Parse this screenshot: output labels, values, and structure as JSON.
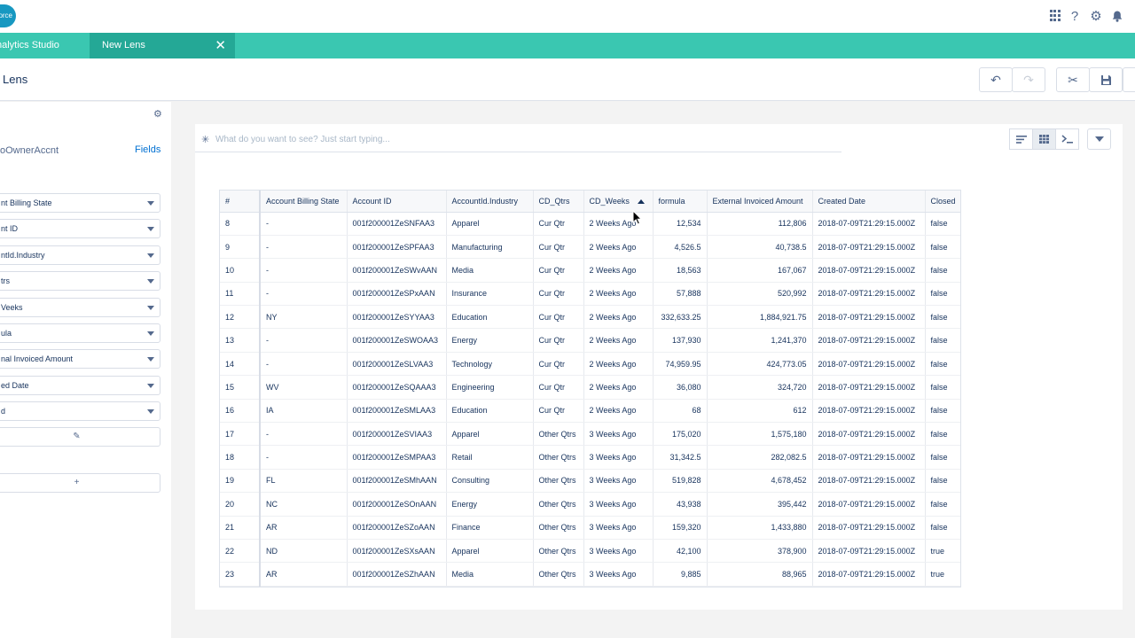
{
  "app": {
    "logo_text": "orce",
    "app_tab": "nalytics Studio",
    "active_tab": "New Lens",
    "close_glyph": "✕",
    "page_title": "Lens"
  },
  "icons": [
    "apps-grid-icon",
    "help-icon",
    "gear-icon",
    "bell-icon",
    "undo-icon",
    "redo-icon",
    "cut-icon",
    "save-icon"
  ],
  "sidebar": {
    "dataset": "oOwnerAccnt",
    "fields_link": "Fields",
    "fields": [
      "nt Billing State",
      "nt ID",
      "ntId.Industry",
      "trs",
      "Veeks",
      "ula",
      "nal Invoiced Amount",
      "ed Date",
      "d"
    ],
    "edit_glyph": "✎",
    "add_glyph": "+"
  },
  "search": {
    "placeholder": "What do you want to see? Just start typing..."
  },
  "table": {
    "columns": [
      "#",
      "Account Billing State",
      "Account ID",
      "AccountId.Industry",
      "CD_Qtrs",
      "CD_Weeks",
      "formula",
      "External Invoiced Amount",
      "Created Date",
      "Closed"
    ],
    "sorted_column": "CD_Weeks",
    "rows": [
      [
        "8",
        "-",
        "001f200001ZeSNFAA3",
        "Apparel",
        "Cur Qtr",
        "2 Weeks Ago",
        "12,534",
        "112,806",
        "2018-07-09T21:29:15.000Z",
        "false"
      ],
      [
        "9",
        "-",
        "001f200001ZeSPFAA3",
        "Manufacturing",
        "Cur Qtr",
        "2 Weeks Ago",
        "4,526.5",
        "40,738.5",
        "2018-07-09T21:29:15.000Z",
        "false"
      ],
      [
        "10",
        "-",
        "001f200001ZeSWvAAN",
        "Media",
        "Cur Qtr",
        "2 Weeks Ago",
        "18,563",
        "167,067",
        "2018-07-09T21:29:15.000Z",
        "false"
      ],
      [
        "11",
        "-",
        "001f200001ZeSPxAAN",
        "Insurance",
        "Cur Qtr",
        "2 Weeks Ago",
        "57,888",
        "520,992",
        "2018-07-09T21:29:15.000Z",
        "false"
      ],
      [
        "12",
        "NY",
        "001f200001ZeSYYAA3",
        "Education",
        "Cur Qtr",
        "2 Weeks Ago",
        "332,633.25",
        "1,884,921.75",
        "2018-07-09T21:29:15.000Z",
        "false"
      ],
      [
        "13",
        "-",
        "001f200001ZeSWOAA3",
        "Energy",
        "Cur Qtr",
        "2 Weeks Ago",
        "137,930",
        "1,241,370",
        "2018-07-09T21:29:15.000Z",
        "false"
      ],
      [
        "14",
        "-",
        "001f200001ZeSLVAA3",
        "Technology",
        "Cur Qtr",
        "2 Weeks Ago",
        "74,959.95",
        "424,773.05",
        "2018-07-09T21:29:15.000Z",
        "false"
      ],
      [
        "15",
        "WV",
        "001f200001ZeSQAAA3",
        "Engineering",
        "Cur Qtr",
        "2 Weeks Ago",
        "36,080",
        "324,720",
        "2018-07-09T21:29:15.000Z",
        "false"
      ],
      [
        "16",
        "IA",
        "001f200001ZeSMLAA3",
        "Education",
        "Cur Qtr",
        "2 Weeks Ago",
        "68",
        "612",
        "2018-07-09T21:29:15.000Z",
        "false"
      ],
      [
        "17",
        "-",
        "001f200001ZeSVIAA3",
        "Apparel",
        "Other Qtrs",
        "3 Weeks Ago",
        "175,020",
        "1,575,180",
        "2018-07-09T21:29:15.000Z",
        "false"
      ],
      [
        "18",
        "-",
        "001f200001ZeSMPAA3",
        "Retail",
        "Other Qtrs",
        "3 Weeks Ago",
        "31,342.5",
        "282,082.5",
        "2018-07-09T21:29:15.000Z",
        "false"
      ],
      [
        "19",
        "FL",
        "001f200001ZeSMhAAN",
        "Consulting",
        "Other Qtrs",
        "3 Weeks Ago",
        "519,828",
        "4,678,452",
        "2018-07-09T21:29:15.000Z",
        "false"
      ],
      [
        "20",
        "NC",
        "001f200001ZeSOnAAN",
        "Energy",
        "Other Qtrs",
        "3 Weeks Ago",
        "43,938",
        "395,442",
        "2018-07-09T21:29:15.000Z",
        "false"
      ],
      [
        "21",
        "AR",
        "001f200001ZeSZoAAN",
        "Finance",
        "Other Qtrs",
        "3 Weeks Ago",
        "159,320",
        "1,433,880",
        "2018-07-09T21:29:15.000Z",
        "false"
      ],
      [
        "22",
        "ND",
        "001f200001ZeSXsAAN",
        "Apparel",
        "Other Qtrs",
        "3 Weeks Ago",
        "42,100",
        "378,900",
        "2018-07-09T21:29:15.000Z",
        "true"
      ],
      [
        "23",
        "AR",
        "001f200001ZeSZhAAN",
        "Media",
        "Other Qtrs",
        "3 Weeks Ago",
        "9,885",
        "88,965",
        "2018-07-09T21:29:15.000Z",
        "true"
      ]
    ]
  }
}
